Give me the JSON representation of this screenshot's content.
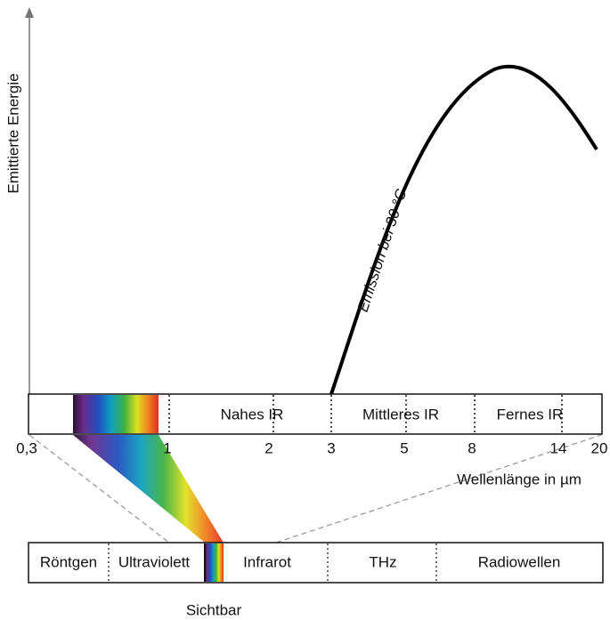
{
  "y_axis_label": "Emittierte Energie",
  "curve_label": "Emission bei 30 °C",
  "upper_bar": {
    "regions": [
      "Nahes IR",
      "Mittleres IR",
      "Fernes IR"
    ]
  },
  "wavelength_ticks": [
    "0,3",
    "1",
    "2",
    "3",
    "5",
    "8",
    "14",
    "20"
  ],
  "wavelength_label": "Wellenlänge in µm",
  "lower_bar": {
    "regions": [
      "Röntgen",
      "Ultraviolett",
      "Infrarot",
      "THz",
      "Radiowellen"
    ]
  },
  "visible_label": "Sichtbar"
}
